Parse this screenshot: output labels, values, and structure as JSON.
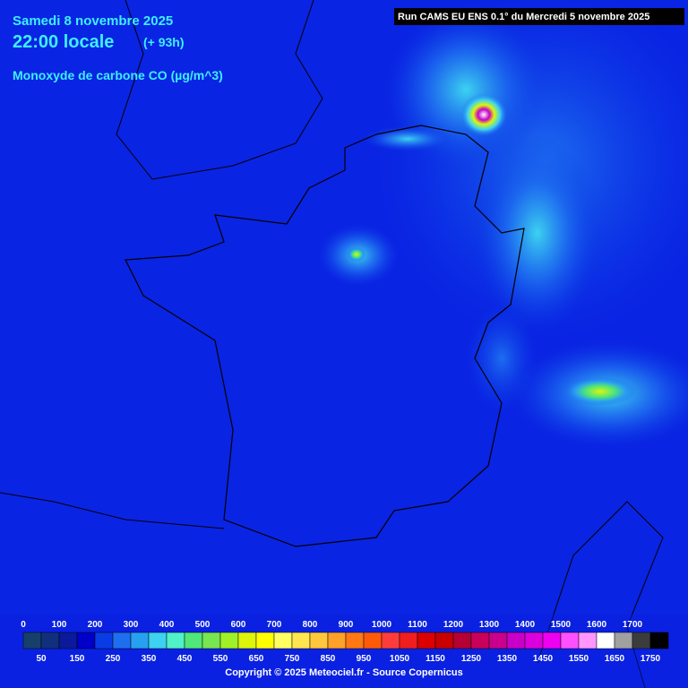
{
  "header": {
    "date": "Samedi 8 novembre 2025",
    "time": "22:00 locale",
    "lead": "(+ 93h)",
    "variable": "Monoxyde de carbone CO (µg/m^3)",
    "run": "Run CAMS EU ENS 0.1° du Mercredi 5 novembre 2025"
  },
  "legend": {
    "labels_top": [
      0,
      100,
      200,
      300,
      400,
      500,
      600,
      700,
      800,
      900,
      1000,
      1100,
      1200,
      1300,
      1400,
      1500,
      1600,
      1700
    ],
    "labels_bottom": [
      50,
      150,
      250,
      350,
      450,
      550,
      650,
      750,
      850,
      950,
      1050,
      1150,
      1250,
      1350,
      1450,
      1550,
      1650,
      1750
    ],
    "colors": [
      "#16406a",
      "#10307e",
      "#0a1a9a",
      "#0000c8",
      "#0a3ce6",
      "#1e6ef0",
      "#28a0f0",
      "#3cd2f0",
      "#50f0c8",
      "#50e678",
      "#78e650",
      "#a0f028",
      "#dcf50a",
      "#ffff00",
      "#ffff64",
      "#ffe650",
      "#ffc83c",
      "#ffa028",
      "#ff7814",
      "#ff5a0a",
      "#ff3c3c",
      "#f01e1e",
      "#dc0000",
      "#c80000",
      "#b40032",
      "#c8005a",
      "#c8008c",
      "#c800c8",
      "#dc00dc",
      "#f000f0",
      "#ff50ff",
      "#ff96ff",
      "#ffffff",
      "#a0a0a0",
      "#3c3c3c",
      "#000000"
    ]
  },
  "footer": {
    "copyright": "Copyright © 2025 Meteociel.fr - Source Copernicus"
  }
}
